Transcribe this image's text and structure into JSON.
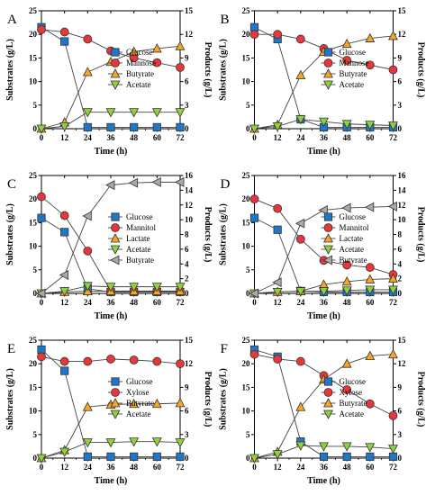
{
  "chart_data": [
    {
      "panel": "A",
      "type": "line",
      "xlabel": "Time (h)",
      "ylabel_left": "Substrates (g/L)",
      "ylabel_right": "Products (g/L)",
      "x_ticks": [
        0,
        12,
        24,
        36,
        48,
        60,
        72
      ],
      "xlim": [
        0,
        72
      ],
      "ylim_left": [
        0,
        25
      ],
      "yticks_left": [
        0,
        5,
        10,
        15,
        20,
        25
      ],
      "ylim_right": [
        0,
        15
      ],
      "yticks_right": [
        0,
        3,
        6,
        9,
        12,
        15
      ],
      "legend_position": "middle-right",
      "series": [
        {
          "name": "Glucose",
          "marker": "square",
          "color": "#1f77c9",
          "axis": "left",
          "x": [
            0,
            12,
            24,
            36,
            48,
            60,
            72
          ],
          "values": [
            21.5,
            18.5,
            0.3,
            0.3,
            0.3,
            0.3,
            0.3
          ]
        },
        {
          "name": "Mannose",
          "marker": "circle",
          "color": "#e8363d",
          "axis": "left",
          "x": [
            0,
            12,
            24,
            36,
            48,
            60,
            72
          ],
          "values": [
            21.0,
            20.5,
            19.0,
            16.5,
            15.0,
            14.0,
            13.0
          ]
        },
        {
          "name": "Butyrate",
          "marker": "triangle-up",
          "color": "#f5a623",
          "axis": "right",
          "x": [
            0,
            12,
            24,
            36,
            48,
            60,
            72
          ],
          "values": [
            0.0,
            0.8,
            7.2,
            8.5,
            9.8,
            10.2,
            10.5
          ]
        },
        {
          "name": "Acetate",
          "marker": "triangle-down",
          "color": "#8ed13c",
          "axis": "right",
          "x": [
            0,
            12,
            24,
            36,
            48,
            60,
            72
          ],
          "values": [
            0.0,
            0.3,
            2.1,
            2.1,
            2.1,
            2.1,
            2.1
          ]
        }
      ]
    },
    {
      "panel": "B",
      "type": "line",
      "xlabel": "Time (h)",
      "ylabel_left": "Substrates (g/L)",
      "ylabel_right": "Products (g/L)",
      "x_ticks": [
        0,
        12,
        24,
        36,
        48,
        60,
        72
      ],
      "xlim": [
        0,
        72
      ],
      "ylim_left": [
        0,
        25
      ],
      "yticks_left": [
        0,
        5,
        10,
        15,
        20,
        25
      ],
      "ylim_right": [
        0,
        15
      ],
      "yticks_right": [
        0,
        3,
        6,
        9,
        12,
        15
      ],
      "legend_position": "middle-right",
      "series": [
        {
          "name": "Glucose",
          "marker": "square",
          "color": "#1f77c9",
          "axis": "left",
          "x": [
            0,
            12,
            24,
            36,
            48,
            60,
            72
          ],
          "values": [
            21.5,
            19.0,
            2.0,
            0.3,
            0.3,
            0.3,
            0.3
          ]
        },
        {
          "name": "Mannose",
          "marker": "circle",
          "color": "#e8363d",
          "axis": "left",
          "x": [
            0,
            12,
            24,
            36,
            48,
            60,
            72
          ],
          "values": [
            20.0,
            20.0,
            19.0,
            17.0,
            14.5,
            13.5,
            12.5
          ]
        },
        {
          "name": "Butyrate",
          "marker": "triangle-up",
          "color": "#f5a623",
          "axis": "right",
          "x": [
            0,
            12,
            24,
            36,
            48,
            60,
            72
          ],
          "values": [
            0.0,
            0.5,
            6.8,
            9.8,
            10.8,
            11.5,
            11.8
          ]
        },
        {
          "name": "Acetate",
          "marker": "triangle-down",
          "color": "#8ed13c",
          "axis": "right",
          "x": [
            0,
            12,
            24,
            36,
            48,
            60,
            72
          ],
          "values": [
            0.0,
            0.3,
            1.2,
            0.9,
            0.6,
            0.5,
            0.4
          ]
        }
      ]
    },
    {
      "panel": "C",
      "type": "line",
      "xlabel": "Time (h)",
      "ylabel_left": "Substrates (g/L)",
      "ylabel_right": "Products (g/L)",
      "x_ticks": [
        0,
        12,
        24,
        36,
        48,
        60,
        72
      ],
      "xlim": [
        0,
        72
      ],
      "ylim_left": [
        0,
        25
      ],
      "yticks_left": [
        0,
        5,
        10,
        15,
        20,
        25
      ],
      "ylim_right": [
        0,
        16
      ],
      "yticks_right": [
        0,
        2,
        4,
        6,
        8,
        10,
        12,
        14,
        16
      ],
      "legend_position": "middle-right",
      "series": [
        {
          "name": "Glucose",
          "marker": "square",
          "color": "#1f77c9",
          "axis": "left",
          "x": [
            0,
            12,
            24,
            36,
            48,
            60,
            72
          ],
          "values": [
            16.0,
            13.0,
            1.0,
            0.3,
            0.3,
            0.3,
            0.3
          ]
        },
        {
          "name": "Mannitol",
          "marker": "circle",
          "color": "#e8363d",
          "axis": "left",
          "x": [
            0,
            12,
            24,
            36,
            48,
            60,
            72
          ],
          "values": [
            20.5,
            16.5,
            9.0,
            0.5,
            0.5,
            0.5,
            0.5
          ]
        },
        {
          "name": "Lactate",
          "marker": "triangle-up",
          "color": "#f5a623",
          "axis": "right",
          "x": [
            0,
            12,
            24,
            36,
            48,
            60,
            72
          ],
          "values": [
            0.0,
            0.2,
            0.3,
            0.3,
            0.3,
            0.3,
            0.3
          ]
        },
        {
          "name": "Acetate",
          "marker": "triangle-down",
          "color": "#8ed13c",
          "axis": "right",
          "x": [
            0,
            12,
            24,
            36,
            48,
            60,
            72
          ],
          "values": [
            0.0,
            0.3,
            1.0,
            0.9,
            0.9,
            0.9,
            0.9
          ]
        },
        {
          "name": "Butyrate",
          "marker": "triangle-left",
          "color": "#a9a9a9",
          "axis": "right",
          "x": [
            0,
            12,
            24,
            36,
            48,
            60,
            72
          ],
          "values": [
            0.0,
            2.5,
            10.5,
            14.7,
            15.0,
            15.1,
            15.1
          ]
        }
      ]
    },
    {
      "panel": "D",
      "type": "line",
      "xlabel": "Time (h)",
      "ylabel_left": "Substrates (g/L)",
      "ylabel_right": "Products (g/L)",
      "x_ticks": [
        0,
        12,
        24,
        36,
        48,
        60,
        72
      ],
      "xlim": [
        0,
        72
      ],
      "ylim_left": [
        0,
        25
      ],
      "yticks_left": [
        0,
        5,
        10,
        15,
        20,
        25
      ],
      "ylim_right": [
        0,
        16
      ],
      "yticks_right": [
        0,
        2,
        4,
        6,
        8,
        10,
        12,
        14,
        16
      ],
      "legend_position": "middle-right",
      "series": [
        {
          "name": "Glucose",
          "marker": "square",
          "color": "#1f77c9",
          "axis": "left",
          "x": [
            0,
            12,
            24,
            36,
            48,
            60,
            72
          ],
          "values": [
            16.0,
            13.5,
            0.5,
            0.3,
            0.3,
            0.3,
            0.3
          ]
        },
        {
          "name": "Mannitol",
          "marker": "circle",
          "color": "#e8363d",
          "axis": "left",
          "x": [
            0,
            12,
            24,
            36,
            48,
            60,
            72
          ],
          "values": [
            20.0,
            18.0,
            11.5,
            7.0,
            6.0,
            5.5,
            4.0
          ]
        },
        {
          "name": "Lactate",
          "marker": "triangle-up",
          "color": "#f5a623",
          "axis": "right",
          "x": [
            0,
            12,
            24,
            36,
            48,
            60,
            72
          ],
          "values": [
            0.0,
            0.2,
            0.3,
            1.2,
            1.6,
            1.9,
            2.0
          ]
        },
        {
          "name": "Acetate",
          "marker": "triangle-down",
          "color": "#8ed13c",
          "axis": "right",
          "x": [
            0,
            12,
            24,
            36,
            48,
            60,
            72
          ],
          "values": [
            0.0,
            0.2,
            0.3,
            0.3,
            0.4,
            0.5,
            0.5
          ]
        },
        {
          "name": "Butyrate",
          "marker": "triangle-left",
          "color": "#a9a9a9",
          "axis": "right",
          "x": [
            0,
            12,
            24,
            36,
            48,
            60,
            72
          ],
          "values": [
            0.0,
            1.5,
            9.5,
            11.3,
            11.6,
            11.7,
            11.8
          ]
        }
      ]
    },
    {
      "panel": "E",
      "type": "line",
      "xlabel": "Time (h)",
      "ylabel_left": "Substrates (g/L)",
      "ylabel_right": "Products (g/L)",
      "x_ticks": [
        0,
        12,
        24,
        36,
        48,
        60,
        72
      ],
      "xlim": [
        0,
        72
      ],
      "ylim_left": [
        0,
        25
      ],
      "yticks_left": [
        0,
        5,
        10,
        15,
        20,
        25
      ],
      "ylim_right": [
        0,
        15
      ],
      "yticks_right": [
        0,
        3,
        6,
        9,
        12,
        15
      ],
      "legend_position": "middle-right",
      "series": [
        {
          "name": "Glucose",
          "marker": "square",
          "color": "#1f77c9",
          "axis": "left",
          "x": [
            0,
            12,
            24,
            36,
            48,
            60,
            72
          ],
          "values": [
            23.0,
            18.5,
            0.3,
            0.3,
            0.3,
            0.3,
            0.3
          ]
        },
        {
          "name": "Xylose",
          "marker": "circle",
          "color": "#e8363d",
          "axis": "left",
          "x": [
            0,
            12,
            24,
            36,
            48,
            60,
            72
          ],
          "values": [
            21.5,
            20.5,
            20.5,
            21.0,
            20.8,
            20.5,
            20.0
          ]
        },
        {
          "name": "Butyrate",
          "marker": "triangle-up",
          "color": "#f5a623",
          "axis": "right",
          "x": [
            0,
            12,
            24,
            36,
            48,
            60,
            72
          ],
          "values": [
            0.0,
            1.0,
            6.5,
            6.8,
            6.9,
            6.9,
            7.0
          ]
        },
        {
          "name": "Acetate",
          "marker": "triangle-down",
          "color": "#8ed13c",
          "axis": "right",
          "x": [
            0,
            12,
            24,
            36,
            48,
            60,
            72
          ],
          "values": [
            0.0,
            0.8,
            2.0,
            2.0,
            2.1,
            2.1,
            2.0
          ]
        }
      ]
    },
    {
      "panel": "F",
      "type": "line",
      "xlabel": "Time (h)",
      "ylabel_left": "Substrates (g/L)",
      "ylabel_right": "Products (g/L)",
      "x_ticks": [
        0,
        12,
        24,
        36,
        48,
        60,
        72
      ],
      "xlim": [
        0,
        72
      ],
      "ylim_left": [
        0,
        25
      ],
      "yticks_left": [
        0,
        5,
        10,
        15,
        20,
        25
      ],
      "ylim_right": [
        0,
        15
      ],
      "yticks_right": [
        0,
        3,
        6,
        9,
        12,
        15
      ],
      "legend_position": "middle-right",
      "series": [
        {
          "name": "Glucose",
          "marker": "square",
          "color": "#1f77c9",
          "axis": "left",
          "x": [
            0,
            12,
            24,
            36,
            48,
            60,
            72
          ],
          "values": [
            23.0,
            21.5,
            3.5,
            0.3,
            0.3,
            0.3,
            0.3
          ]
        },
        {
          "name": "Xylose",
          "marker": "circle",
          "color": "#e8363d",
          "axis": "left",
          "x": [
            0,
            12,
            24,
            36,
            48,
            60,
            72
          ],
          "values": [
            22.0,
            21.0,
            20.5,
            17.5,
            14.5,
            11.5,
            9.0
          ]
        },
        {
          "name": "Butyrate",
          "marker": "triangle-up",
          "color": "#f5a623",
          "axis": "right",
          "x": [
            0,
            12,
            24,
            36,
            48,
            60,
            72
          ],
          "values": [
            0.0,
            0.8,
            6.5,
            10.0,
            12.0,
            13.0,
            13.2
          ]
        },
        {
          "name": "Acetate",
          "marker": "triangle-down",
          "color": "#8ed13c",
          "axis": "right",
          "x": [
            0,
            12,
            24,
            36,
            48,
            60,
            72
          ],
          "values": [
            0.0,
            0.5,
            1.6,
            1.5,
            1.5,
            1.4,
            1.2
          ]
        }
      ]
    }
  ]
}
